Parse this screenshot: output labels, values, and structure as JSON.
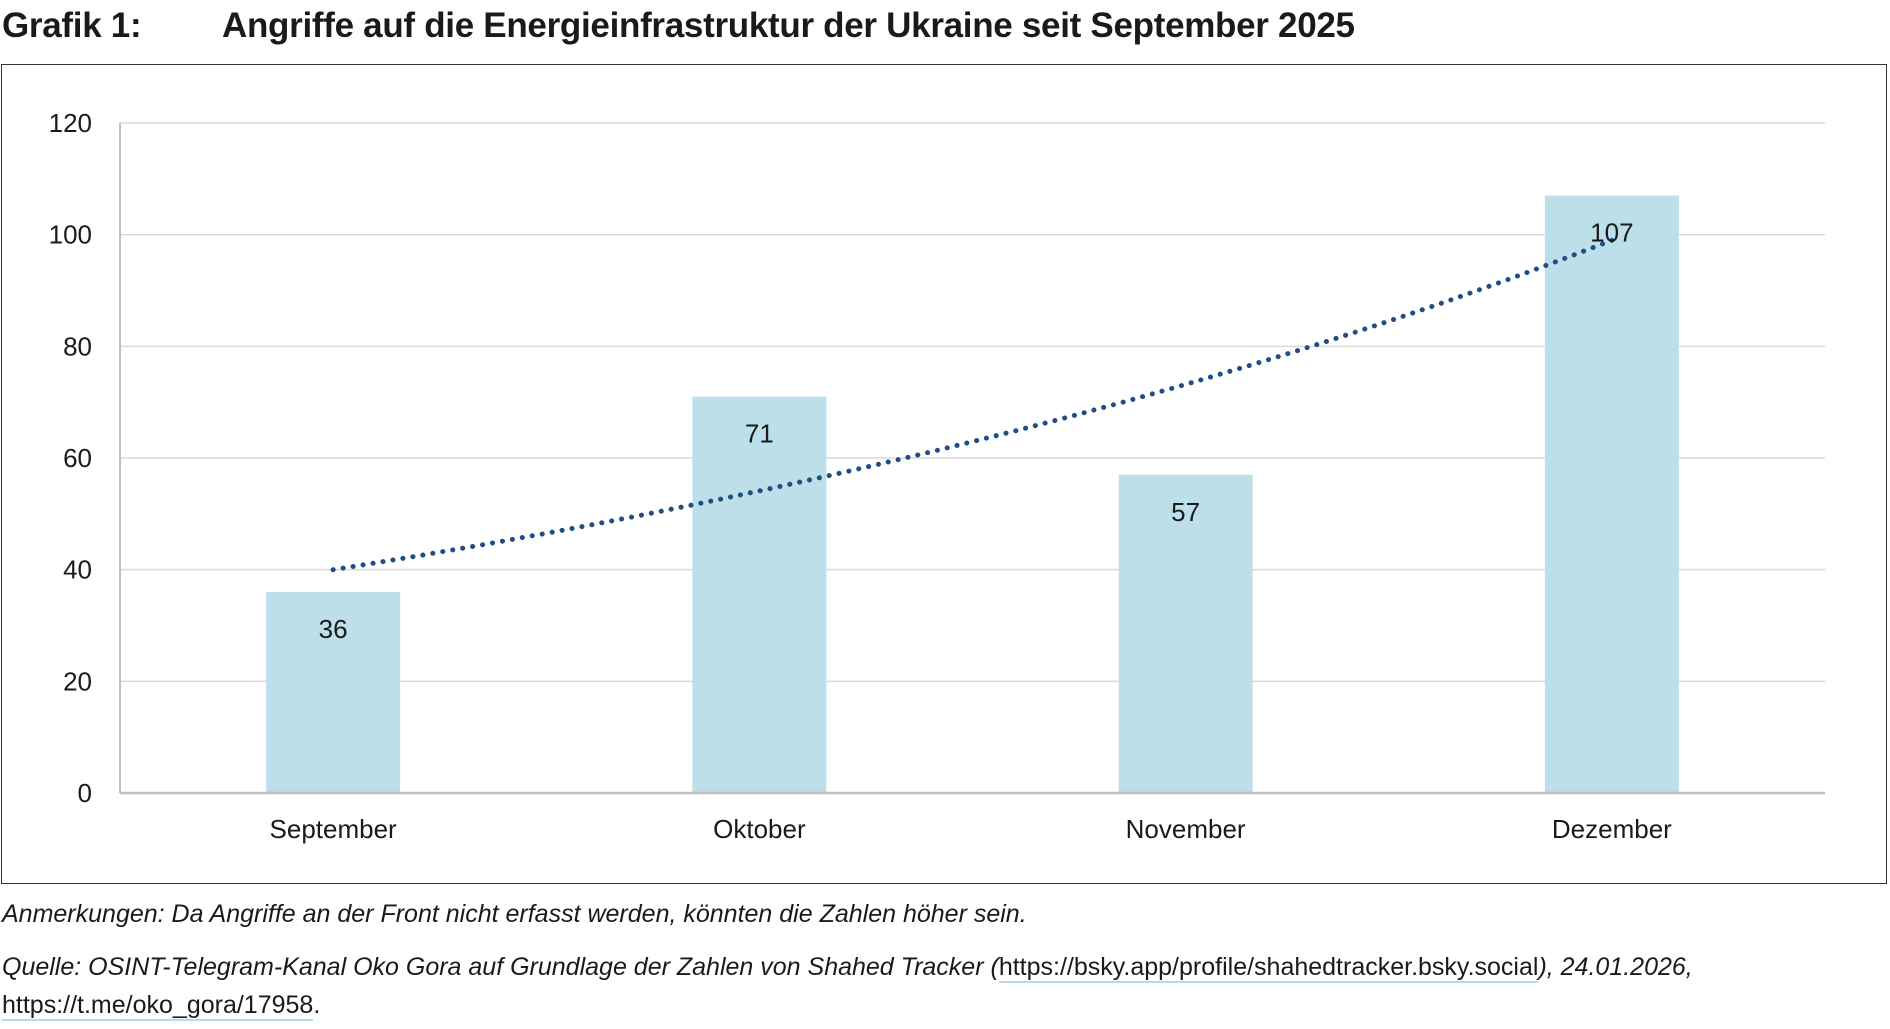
{
  "header": {
    "label": "Grafik 1:",
    "title": "Angriffe auf die Energieinfrastruktur der Ukraine seit September 2025"
  },
  "chart_data": {
    "type": "bar",
    "title": "Angriffe auf die Energieinfrastruktur der Ukraine seit September 2025",
    "categories": [
      "September",
      "Oktober",
      "November",
      "Dezember"
    ],
    "values": [
      36,
      71,
      57,
      107
    ],
    "data_labels": [
      "36",
      "71",
      "57",
      "107"
    ],
    "ylim": [
      0,
      120
    ],
    "yticks": [
      0,
      20,
      40,
      60,
      80,
      100,
      120
    ],
    "ytick_labels": [
      "0",
      "20",
      "40",
      "60",
      "80",
      "100",
      "120"
    ],
    "xlabel": "",
    "ylabel": "",
    "grid": true,
    "legend": "none",
    "trendline": {
      "type": "exponential",
      "start_value": 40,
      "end_value": 99
    },
    "colors": {
      "bar": "#bcdfea",
      "trend": "#1f4e85",
      "grid": "#d9d9d9",
      "axis": "#bfbfbf"
    }
  },
  "notes": {
    "remark": "Anmerkungen: Da Angriffe an der Front nicht erfasst werden, könnten die Zahlen höher sein.",
    "source_prefix": "Quelle: OSINT-Telegram-Kanal Oko Gora auf Grundlage der Zahlen von Shahed Tracker (",
    "source_link1": "https://bsky.app/profile/shahedtracker.bsky.social",
    "source_middle": "), 24.01.2026, ",
    "source_link2": "https://t.me/oko_gora/17958",
    "source_suffix": "."
  }
}
